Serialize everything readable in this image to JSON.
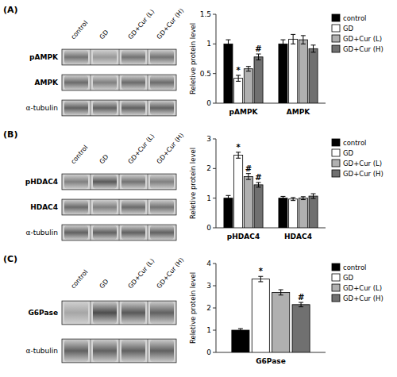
{
  "chart_data": [
    {
      "type": "heatmap",
      "title": "(A)",
      "categories": [
        "control",
        "GD",
        "GD+Cur (L)",
        "GD+Cur (H)"
      ],
      "rows": [
        "pAMPK",
        "AMPK",
        "α-tubulin"
      ],
      "cells": [
        [
          0.45,
          0.6,
          0.45,
          0.45
        ],
        [
          0.42,
          0.5,
          0.42,
          0.42
        ],
        [
          0.38,
          0.38,
          0.38,
          0.38
        ]
      ]
    },
    {
      "type": "bar",
      "categories": [
        "pAMPK",
        "AMPK"
      ],
      "y_label": "Reletive protein level",
      "ylim": [
        0,
        1.5
      ],
      "yticks": [
        0,
        0.5,
        1,
        1.5
      ],
      "grid": false,
      "legend": "upper right",
      "series": [
        {
          "name": "control",
          "color": "#000000",
          "values": [
            1.0,
            1.0
          ],
          "errors": [
            0.07,
            0.07
          ]
        },
        {
          "name": "GD",
          "color": "#ffffff",
          "values": [
            0.42,
            1.08
          ],
          "errors": [
            0.05,
            0.08
          ]
        },
        {
          "name": "GD+Cur (L)",
          "color": "#b0b0b0",
          "values": [
            0.58,
            1.07
          ],
          "errors": [
            0.04,
            0.07
          ]
        },
        {
          "name": "GD+Cur (H)",
          "color": "#707070",
          "values": [
            0.78,
            0.92
          ],
          "errors": [
            0.05,
            0.06
          ]
        }
      ],
      "annotations": [
        {
          "text": "*",
          "category": "pAMPK",
          "series": "GD"
        },
        {
          "text": "#",
          "category": "pAMPK",
          "series": "GD+Cur (H)"
        }
      ]
    },
    {
      "type": "heatmap",
      "title": "(B)",
      "categories": [
        "control",
        "GD",
        "GD+Cur (L)",
        "GD+Cur (H)"
      ],
      "rows": [
        "pHDAC4",
        "HDAC4",
        "α-tubulin"
      ],
      "cells": [
        [
          0.5,
          0.35,
          0.45,
          0.5
        ],
        [
          0.42,
          0.5,
          0.42,
          0.45
        ],
        [
          0.38,
          0.38,
          0.38,
          0.38
        ]
      ]
    },
    {
      "type": "bar",
      "categories": [
        "pHDAC4",
        "HDAC4"
      ],
      "y_label": "Reletive protein level",
      "ylim": [
        0,
        3
      ],
      "yticks": [
        0,
        1,
        2,
        3
      ],
      "grid": false,
      "legend": "upper right",
      "series": [
        {
          "name": "control",
          "color": "#000000",
          "values": [
            1.0,
            1.0
          ],
          "errors": [
            0.09,
            0.06
          ]
        },
        {
          "name": "GD",
          "color": "#ffffff",
          "values": [
            2.45,
            0.97
          ],
          "errors": [
            0.1,
            0.05
          ]
        },
        {
          "name": "GD+Cur (L)",
          "color": "#b0b0b0",
          "values": [
            1.73,
            1.0
          ],
          "errors": [
            0.1,
            0.05
          ]
        },
        {
          "name": "GD+Cur (H)",
          "color": "#707070",
          "values": [
            1.45,
            1.07
          ],
          "errors": [
            0.08,
            0.08
          ]
        }
      ],
      "annotations": [
        {
          "text": "*",
          "category": "pHDAC4",
          "series": "GD"
        },
        {
          "text": "#",
          "category": "pHDAC4",
          "series": "GD+Cur (L)"
        },
        {
          "text": "#",
          "category": "pHDAC4",
          "series": "GD+Cur (H)"
        }
      ]
    },
    {
      "type": "heatmap",
      "title": "(C)",
      "categories": [
        "control",
        "GD",
        "GD+Cur (L)",
        "GD+Cur (H)"
      ],
      "rows": [
        "G6Pase",
        "α-tubulin"
      ],
      "cells": [
        [
          0.65,
          0.3,
          0.35,
          0.38
        ],
        [
          0.38,
          0.38,
          0.38,
          0.38
        ]
      ]
    },
    {
      "type": "bar",
      "categories": [
        "G6Pase"
      ],
      "y_label": "Reletive protein level",
      "ylim": [
        0,
        4
      ],
      "yticks": [
        0,
        1,
        2,
        3,
        4
      ],
      "grid": false,
      "legend": "upper right",
      "series": [
        {
          "name": "control",
          "color": "#000000",
          "values": [
            1.0
          ],
          "errors": [
            0.07
          ]
        },
        {
          "name": "GD",
          "color": "#ffffff",
          "values": [
            3.3
          ],
          "errors": [
            0.12
          ]
        },
        {
          "name": "GD+Cur (L)",
          "color": "#b0b0b0",
          "values": [
            2.7
          ],
          "errors": [
            0.12
          ]
        },
        {
          "name": "GD+Cur (H)",
          "color": "#707070",
          "values": [
            2.15
          ],
          "errors": [
            0.1
          ]
        }
      ],
      "annotations": [
        {
          "text": "*",
          "category": "G6Pase",
          "series": "GD"
        },
        {
          "text": "#",
          "category": "G6Pase",
          "series": "GD+Cur (H)"
        }
      ]
    }
  ]
}
